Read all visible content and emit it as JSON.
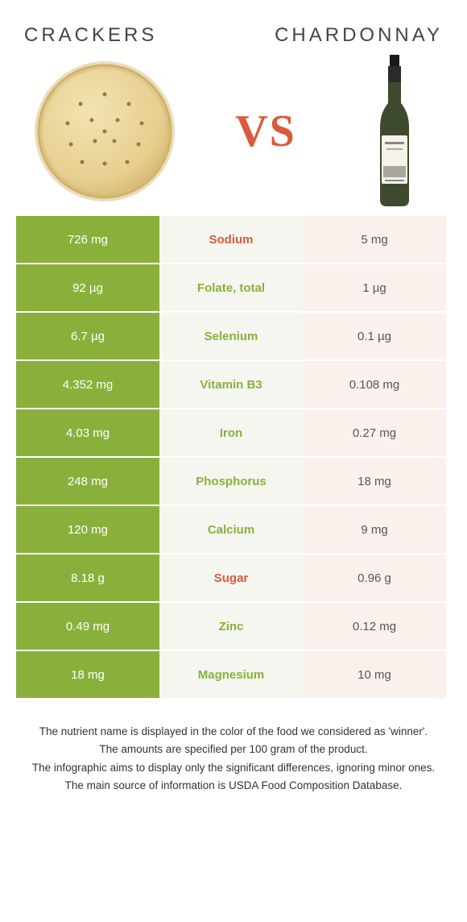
{
  "left_title": "CRACKERS",
  "right_title": "CHARDONNAY",
  "vs_text": "VS",
  "colors": {
    "green": "#8ab03c",
    "light_green": "#f4f6ef",
    "orange": "#e38868",
    "light_orange": "#fbf1ec",
    "txt_green": "#8ab03c",
    "txt_orange": "#d95b3b"
  },
  "rows": [
    {
      "left": "726 mg",
      "label": "Sodium",
      "right": "5 mg",
      "winner": "left",
      "label_color": "orange"
    },
    {
      "left": "92 µg",
      "label": "Folate, total",
      "right": "1 µg",
      "winner": "left",
      "label_color": "green"
    },
    {
      "left": "6.7 µg",
      "label": "Selenium",
      "right": "0.1 µg",
      "winner": "left",
      "label_color": "green"
    },
    {
      "left": "4.352 mg",
      "label": "Vitamin B3",
      "right": "0.108 mg",
      "winner": "left",
      "label_color": "green"
    },
    {
      "left": "4.03 mg",
      "label": "Iron",
      "right": "0.27 mg",
      "winner": "left",
      "label_color": "green"
    },
    {
      "left": "248 mg",
      "label": "Phosphorus",
      "right": "18 mg",
      "winner": "left",
      "label_color": "green"
    },
    {
      "left": "120 mg",
      "label": "Calcium",
      "right": "9 mg",
      "winner": "left",
      "label_color": "green"
    },
    {
      "left": "8.18 g",
      "label": "Sugar",
      "right": "0.96 g",
      "winner": "left",
      "label_color": "orange"
    },
    {
      "left": "0.49 mg",
      "label": "Zinc",
      "right": "0.12 mg",
      "winner": "left",
      "label_color": "green"
    },
    {
      "left": "18 mg",
      "label": "Magnesium",
      "right": "10 mg",
      "winner": "left",
      "label_color": "green"
    }
  ],
  "footnotes": [
    "The nutrient name is displayed in the color of the food we considered as 'winner'.",
    "The amounts are specified per 100 gram of the product.",
    "The infographic aims to display only the significant differences, ignoring minor ones.",
    "The main source of information is USDA Food Composition Database."
  ]
}
